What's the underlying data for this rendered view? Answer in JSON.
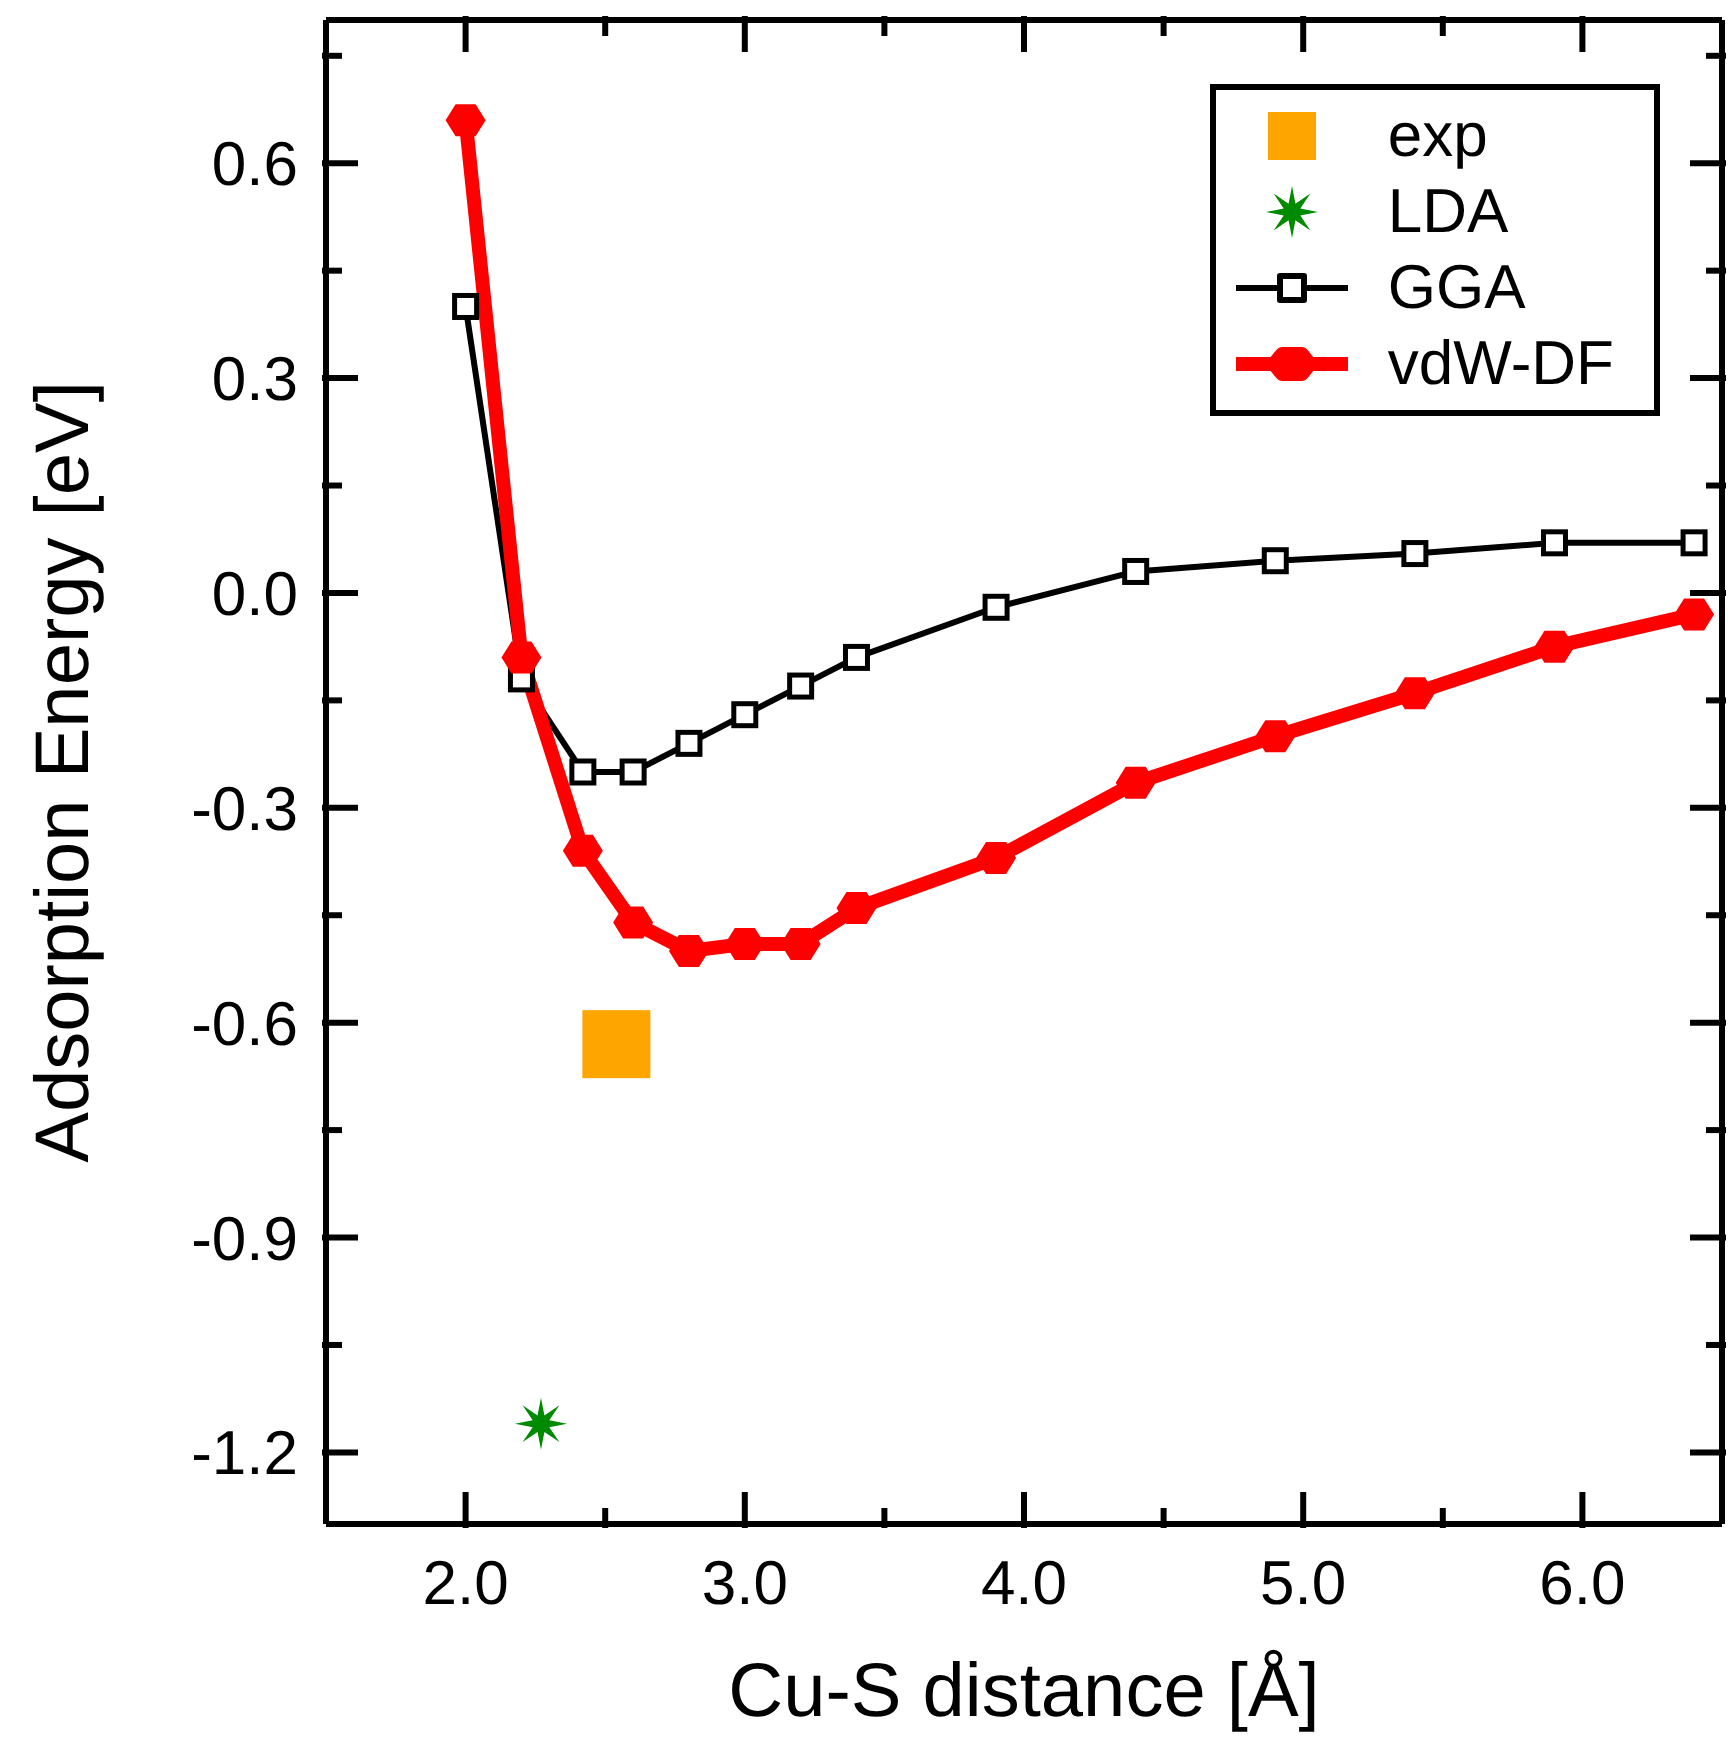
{
  "chart_data": {
    "type": "line",
    "xlabel": "Cu-S distance [Å]",
    "ylabel": "Adsorption Energy [eV]",
    "xlim": [
      1.5,
      6.5
    ],
    "ylim": [
      -1.3,
      0.8
    ],
    "xticks": [
      {
        "value": 2.0,
        "label": "2.0"
      },
      {
        "value": 2.5,
        "label": null
      },
      {
        "value": 3.0,
        "label": "3.0"
      },
      {
        "value": 3.5,
        "label": null
      },
      {
        "value": 4.0,
        "label": "4.0"
      },
      {
        "value": 4.5,
        "label": null
      },
      {
        "value": 5.0,
        "label": "5.0"
      },
      {
        "value": 5.5,
        "label": null
      },
      {
        "value": 6.0,
        "label": "6.0"
      }
    ],
    "yticks": [
      {
        "value": -1.2,
        "label": "-1.2"
      },
      {
        "value": -1.05,
        "label": null
      },
      {
        "value": -0.9,
        "label": "-0.9"
      },
      {
        "value": -0.75,
        "label": null
      },
      {
        "value": -0.6,
        "label": "-0.6"
      },
      {
        "value": -0.45,
        "label": null
      },
      {
        "value": -0.3,
        "label": "-0.3"
      },
      {
        "value": -0.15,
        "label": null
      },
      {
        "value": 0.0,
        "label": "0.0"
      },
      {
        "value": 0.15,
        "label": null
      },
      {
        "value": 0.3,
        "label": "0.3"
      },
      {
        "value": 0.45,
        "label": null
      },
      {
        "value": 0.6,
        "label": "0.6"
      },
      {
        "value": 0.75,
        "label": null
      }
    ],
    "legend": "top right",
    "grid": false,
    "series": [
      {
        "name": "exp",
        "type": "scatter",
        "marker": "square",
        "color": "#ffa500",
        "x": [
          2.54
        ],
        "values": [
          -0.63
        ]
      },
      {
        "name": "LDA",
        "type": "scatter",
        "marker": "star",
        "color": "#008a00",
        "x": [
          2.27
        ],
        "values": [
          -1.16
        ]
      },
      {
        "name": "GGA",
        "type": "line",
        "marker": "square",
        "color": "#000000",
        "x": [
          2.0,
          2.2,
          2.42,
          2.6,
          2.8,
          3.0,
          3.2,
          3.4,
          3.9,
          4.4,
          4.9,
          5.4,
          5.9,
          6.4
        ],
        "values": [
          0.4,
          -0.12,
          -0.25,
          -0.25,
          -0.21,
          -0.17,
          -0.13,
          -0.09,
          -0.02,
          0.03,
          0.045,
          0.055,
          0.07,
          0.07
        ]
      },
      {
        "name": "vdW-DF",
        "type": "line",
        "marker": "diamond",
        "color": "#ff0000",
        "x": [
          2.0,
          2.2,
          2.42,
          2.6,
          2.8,
          3.0,
          3.2,
          3.4,
          3.9,
          4.4,
          4.9,
          5.4,
          5.9,
          6.4
        ],
        "values": [
          0.66,
          -0.09,
          -0.36,
          -0.46,
          -0.5,
          -0.49,
          -0.49,
          -0.44,
          -0.37,
          -0.265,
          -0.2,
          -0.14,
          -0.075,
          -0.03
        ]
      }
    ]
  }
}
